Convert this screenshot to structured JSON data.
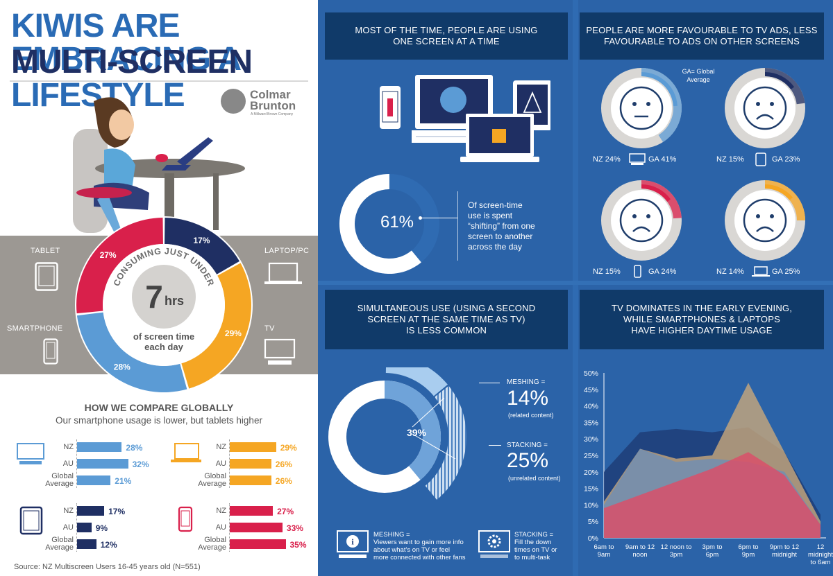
{
  "title": {
    "line1": "KIWIS ARE EMBRACING A",
    "line2a": "MULTI-SCREEN ",
    "line2b": "LIFESTYLE"
  },
  "logo": {
    "name1": "Colmar",
    "name2": "Brunton",
    "tagline": "A Millward Brown Company"
  },
  "colors": {
    "navy": "#1f2f63",
    "orange": "#f5a623",
    "blue": "#5b9bd5",
    "pink": "#d9204b",
    "title_blue": "#2a6bb5",
    "title_dark": "#1f2f63"
  },
  "usage_donut": {
    "center_top": "CONSUMING JUST UNDER",
    "center_value": "7",
    "center_unit": "hrs",
    "center_bottom1": "of screen time",
    "center_bottom2": "each day",
    "labels": {
      "tablet": "TABLET",
      "laptop": "LAPTOP/PC",
      "smartphone": "SMARTPHONE",
      "tv": "TV"
    },
    "icons": {
      "tablet": "tablet-icon",
      "laptop": "laptop-icon",
      "smartphone": "smartphone-icon",
      "tv": "tv-icon"
    }
  },
  "compare": {
    "heading": "HOW WE COMPARE GLOBALLY",
    "subheading": "Our smartphone usage is lower, but tablets higher",
    "row_labels": {
      "nz": "NZ",
      "au": "AU",
      "ga1": "Global",
      "ga2": "Average"
    }
  },
  "source": "Source: NZ Multiscreen Users 16-45 years old (N=551)",
  "sections": {
    "one_screen": {
      "title1": "MOST OF THE TIME, PEOPLE ARE USING",
      "title2": "ONE SCREEN AT A TIME",
      "value": "61%",
      "desc": [
        "Of screen-time",
        "use is spent",
        "“shifting” from one",
        "screen to another",
        "across the day"
      ]
    },
    "ads": {
      "title1": "PEOPLE ARE MORE FAVOURABLE TO TV ADS, LESS",
      "title2": "FAVOURABLE TO ADS ON OTHER SCREENS",
      "ga_note1": "GA= Global",
      "ga_note2": "Average",
      "items": [
        {
          "device": "tv",
          "icon": "neutral-face-icon",
          "nz_label": "NZ 24%",
          "ga_label": "GA 41%",
          "nz": 24,
          "ga": 41,
          "color": "#5b9bd5"
        },
        {
          "device": "tablet",
          "icon": "sad-face-icon",
          "nz_label": "NZ 15%",
          "ga_label": "GA 23%",
          "nz": 15,
          "ga": 23,
          "color": "#1f2f63"
        },
        {
          "device": "smartphone",
          "icon": "sad-face-icon",
          "nz_label": "NZ 15%",
          "ga_label": "GA 24%",
          "nz": 15,
          "ga": 24,
          "color": "#d9204b"
        },
        {
          "device": "laptop",
          "icon": "sad-face-icon",
          "nz_label": "NZ 14%",
          "ga_label": "GA 25%",
          "nz": 14,
          "ga": 25,
          "color": "#f5a623"
        }
      ]
    },
    "simultaneous": {
      "title1": "SIMULTANEOUS USE (USING A SECOND",
      "title2": "SCREEN AT THE SAME TIME AS TV)",
      "title3": "IS LESS COMMON",
      "value": "39%",
      "meshing_label": "MESHING =",
      "meshing_value": "14%",
      "meshing_sub": "(related content)",
      "stacking_label": "STACKING =",
      "stacking_value": "25%",
      "stacking_sub": "(unrelated content)",
      "meshing_note_title": "MESHING =",
      "meshing_note": [
        "Viewers want to gain more info",
        "about what’s on TV or feel",
        "more connected with other fans"
      ],
      "stacking_note_title": "STACKING =",
      "stacking_note": [
        "Fill the down",
        "times on TV or",
        "to multi-task"
      ]
    },
    "daytime": {
      "title1": "TV DOMINATES IN THE EARLY EVENING,",
      "title2": "WHILE SMARTPHONES & LAPTOPS",
      "title3": "HAVE HIGHER DAYTIME USAGE"
    }
  },
  "chart_data": [
    {
      "type": "pie",
      "title": "CONSUMING JUST UNDER 7 hrs of screen time each day",
      "categories": [
        "TABLET",
        "LAPTOP/PC",
        "TV",
        "SMARTPHONE"
      ],
      "values": [
        17,
        29,
        28,
        27
      ],
      "value_labels": [
        "17%",
        "29%",
        "28%",
        "27%"
      ],
      "colors": [
        "#1f2f63",
        "#f5a623",
        "#5b9bd5",
        "#d9204b"
      ]
    },
    {
      "type": "bar",
      "title": "HOW WE COMPARE GLOBALLY",
      "categories": [
        "NZ",
        "AU",
        "Global Average"
      ],
      "series": [
        {
          "name": "TV",
          "values": [
            28,
            32,
            21
          ],
          "labels": [
            "28%",
            "32%",
            "21%"
          ],
          "color": "#5b9bd5"
        },
        {
          "name": "Laptop/PC",
          "values": [
            29,
            26,
            26
          ],
          "labels": [
            "29%",
            "26%",
            "26%"
          ],
          "color": "#f5a623"
        },
        {
          "name": "Tablet",
          "values": [
            17,
            9,
            12
          ],
          "labels": [
            "17%",
            "9%",
            "12%"
          ],
          "color": "#1f2f63"
        },
        {
          "name": "Smartphone",
          "values": [
            27,
            33,
            35
          ],
          "labels": [
            "27%",
            "33%",
            "35%"
          ],
          "color": "#d9204b"
        }
      ]
    },
    {
      "type": "area",
      "title": "TV DOMINATES IN THE EARLY EVENING, WHILE SMARTPHONES & LAPTOPS HAVE HIGHER DAYTIME USAGE",
      "categories": [
        "6am to 9am",
        "9am to 12 noon",
        "12 noon to 3pm",
        "3pm to 6pm",
        "6pm to 9pm",
        "9pm to 12 midnight",
        "12 midnight to 6am"
      ],
      "category_lines": [
        [
          "6am to",
          "9am"
        ],
        [
          "9am to 12",
          "noon"
        ],
        [
          "12 noon to",
          "3pm"
        ],
        [
          "3pm to",
          "6pm"
        ],
        [
          "6pm to",
          "9pm"
        ],
        [
          "9pm to 12",
          "midnight"
        ],
        [
          "12",
          "midnight",
          "to 6am"
        ]
      ],
      "ylim": [
        0,
        50
      ],
      "yticks": [
        0,
        5,
        10,
        15,
        20,
        25,
        30,
        35,
        40,
        45,
        50
      ],
      "ytick_labels": [
        "0%",
        "5%",
        "10%",
        "15%",
        "20%",
        "25%",
        "30%",
        "35%",
        "40%",
        "45%",
        "50%"
      ],
      "series": [
        {
          "values": [
            20,
            32,
            33,
            32,
            33.5,
            26,
            7
          ],
          "color": "#1f3d78"
        },
        {
          "values": [
            11,
            27,
            24,
            25,
            47,
            26,
            5
          ],
          "color": "#c9a87a"
        },
        {
          "values": [
            10,
            27,
            23,
            24,
            23,
            20,
            4
          ],
          "color": "#5b8cc8"
        },
        {
          "values": [
            9,
            13,
            17,
            21,
            26,
            19,
            4
          ],
          "color": "#d9506a"
        }
      ]
    }
  ]
}
